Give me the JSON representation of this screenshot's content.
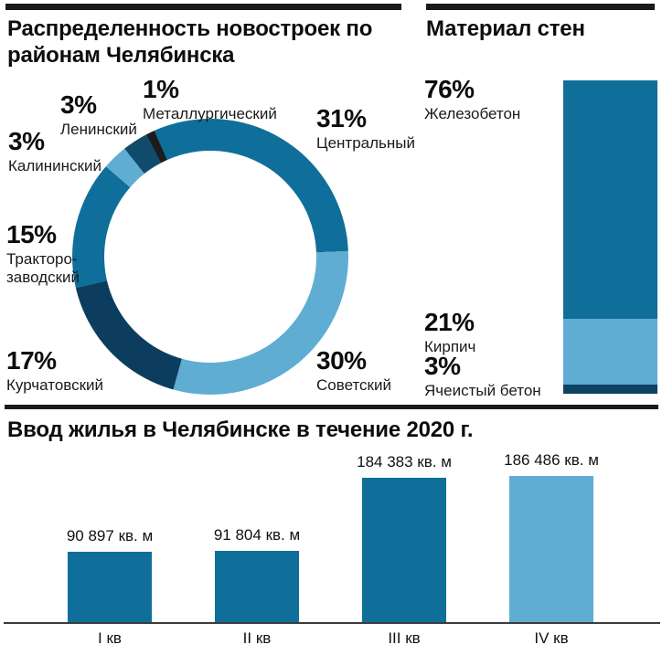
{
  "chart_data": [
    {
      "type": "pie",
      "donut": true,
      "title": "Распределенность новостроек по районам Челябинска",
      "unit": "%",
      "rotation_deg": -24,
      "legend_position": "around",
      "slices": [
        {
          "label": "Центральный",
          "value": 31,
          "pct_label": "31%",
          "color": "#0f6f9a"
        },
        {
          "label": "Советский",
          "value": 30,
          "pct_label": "30%",
          "color": "#5fadd3"
        },
        {
          "label": "Курчатовский",
          "value": 17,
          "pct_label": "17%",
          "color": "#0d3d5e"
        },
        {
          "label": "Тракторо-заводский",
          "label_line1": "Тракторо-",
          "label_line2": "заводский",
          "value": 15,
          "pct_label": "15%",
          "color": "#0f6f9a"
        },
        {
          "label": "Калининский",
          "value": 3,
          "pct_label": "3%",
          "color": "#5fadd3"
        },
        {
          "label": "Ленинский",
          "value": 3,
          "pct_label": "3%",
          "color": "#114b6b"
        },
        {
          "label": "Металлургический",
          "value": 1,
          "pct_label": "1%",
          "color": "#1c1c1c"
        }
      ]
    },
    {
      "type": "bar",
      "variant": "stacked-single-column",
      "title": "Материал стен",
      "unit": "%",
      "segments": [
        {
          "label": "Железобетон",
          "value": 76,
          "pct_label": "76%",
          "color": "#0f6f9a"
        },
        {
          "label": "Кирпич",
          "value": 21,
          "pct_label": "21%",
          "color": "#5fadd3"
        },
        {
          "label": "Ячеистый бетон",
          "value": 3,
          "pct_label": "3%",
          "color": "#0d4264"
        }
      ]
    },
    {
      "type": "bar",
      "title": "Ввод жилья в Челябинске в течение 2020 г.",
      "categories": [
        "I кв",
        "II кв",
        "III кв",
        "IV кв"
      ],
      "values": [
        90897,
        91804,
        184383,
        186486
      ],
      "value_labels": [
        "90 897 кв. м",
        "91 804 кв. м",
        "184 383 кв. м",
        "186 486 кв. м"
      ],
      "colors": [
        "#0f6f9a",
        "#0f6f9a",
        "#0f6f9a",
        "#5fadd3"
      ],
      "ylim": [
        0,
        186486
      ],
      "grid": false,
      "xlabel": "",
      "ylabel": ""
    }
  ],
  "palette": {
    "teal": "#0f6f9a",
    "light_blue": "#5fadd3",
    "dark_navy": "#0d3d5e",
    "black": "#1a1a1a"
  }
}
